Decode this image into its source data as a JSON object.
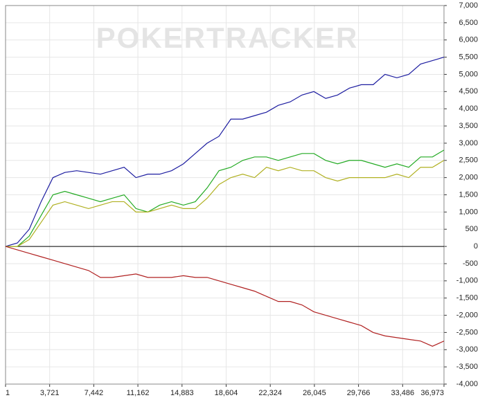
{
  "chart_data": {
    "type": "line",
    "watermark": "POKERTRACKER",
    "x": [
      1,
      1000,
      2000,
      3000,
      4000,
      5000,
      6000,
      7000,
      8000,
      9000,
      10000,
      11000,
      12000,
      13000,
      14000,
      15000,
      16000,
      17000,
      18000,
      19000,
      20000,
      21000,
      22000,
      23000,
      24000,
      25000,
      26000,
      27000,
      28000,
      29000,
      30000,
      31000,
      32000,
      33000,
      34000,
      35000,
      36000,
      36973
    ],
    "series": [
      {
        "color": "#1c1ca0",
        "values": [
          0,
          100,
          500,
          1300,
          2000,
          2150,
          2200,
          2150,
          2100,
          2200,
          2300,
          2000,
          2100,
          2100,
          2200,
          2400,
          2700,
          3000,
          3200,
          3700,
          3700,
          3800,
          3900,
          4100,
          4200,
          4400,
          4500,
          4300,
          4400,
          4600,
          4700,
          4700,
          5000,
          4900,
          5000,
          5300,
          5400,
          5500
        ]
      },
      {
        "color": "#22aa22",
        "values": [
          0,
          0,
          300,
          900,
          1500,
          1600,
          1500,
          1400,
          1300,
          1400,
          1500,
          1100,
          1000,
          1200,
          1300,
          1200,
          1300,
          1700,
          2200,
          2300,
          2500,
          2600,
          2600,
          2500,
          2600,
          2700,
          2700,
          2500,
          2400,
          2500,
          2500,
          2400,
          2300,
          2400,
          2300,
          2600,
          2600,
          2800
        ]
      },
      {
        "color": "#b0b020",
        "values": [
          0,
          0,
          200,
          700,
          1200,
          1300,
          1200,
          1100,
          1200,
          1300,
          1300,
          1000,
          1000,
          1100,
          1200,
          1100,
          1100,
          1400,
          1800,
          2000,
          2100,
          2000,
          2300,
          2200,
          2300,
          2200,
          2200,
          2000,
          1900,
          2000,
          2000,
          2000,
          2000,
          2100,
          2000,
          2300,
          2300,
          2500
        ]
      },
      {
        "color": "#b02020",
        "values": [
          0,
          -100,
          -200,
          -300,
          -400,
          -500,
          -600,
          -700,
          -900,
          -900,
          -850,
          -800,
          -900,
          -900,
          -900,
          -850,
          -900,
          -900,
          -1000,
          -1100,
          -1200,
          -1300,
          -1450,
          -1600,
          -1600,
          -1700,
          -1900,
          -2000,
          -2100,
          -2200,
          -2300,
          -2500,
          -2600,
          -2650,
          -2700,
          -2750,
          -2900,
          -2750
        ]
      }
    ],
    "xlim": [
      1,
      36973
    ],
    "xticks": [
      1,
      {
        "value": 3721,
        "label": "3,721"
      },
      {
        "value": 7442,
        "label": "7,442"
      },
      {
        "value": 11162,
        "label": "11,162"
      },
      {
        "value": 14883,
        "label": "14,883"
      },
      {
        "value": 18604,
        "label": "18,604"
      },
      {
        "value": 22324,
        "label": "22,324"
      },
      {
        "value": 26045,
        "label": "26,045"
      },
      {
        "value": 29766,
        "label": "29,766"
      },
      {
        "value": 33486,
        "label": "33,486"
      },
      {
        "value": 36973,
        "label": "36,973"
      }
    ],
    "ylim": [
      -4000,
      7000
    ],
    "yticks": [
      {
        "value": -4000,
        "label": "-4,000"
      },
      {
        "value": -3500,
        "label": "-3,500"
      },
      {
        "value": -3000,
        "label": "-3,000"
      },
      {
        "value": -2500,
        "label": "-2,500"
      },
      {
        "value": -2000,
        "label": "-2,000"
      },
      {
        "value": -1500,
        "label": "-1,500"
      },
      {
        "value": -1000,
        "label": "-1,000"
      },
      -500,
      0,
      500,
      {
        "value": 1000,
        "label": "1,000"
      },
      {
        "value": 1500,
        "label": "1,500"
      },
      {
        "value": 2000,
        "label": "2,000"
      },
      {
        "value": 2500,
        "label": "2,500"
      },
      {
        "value": 3000,
        "label": "3,000"
      },
      {
        "value": 3500,
        "label": "3,500"
      },
      {
        "value": 4000,
        "label": "4,000"
      },
      {
        "value": 4500,
        "label": "4,500"
      },
      {
        "value": 5000,
        "label": "5,000"
      },
      {
        "value": 5500,
        "label": "5,500"
      },
      {
        "value": 6000,
        "label": "6,000"
      },
      {
        "value": 6500,
        "label": "6,500"
      },
      {
        "value": 7000,
        "label": "7,000"
      }
    ],
    "grid": true
  }
}
